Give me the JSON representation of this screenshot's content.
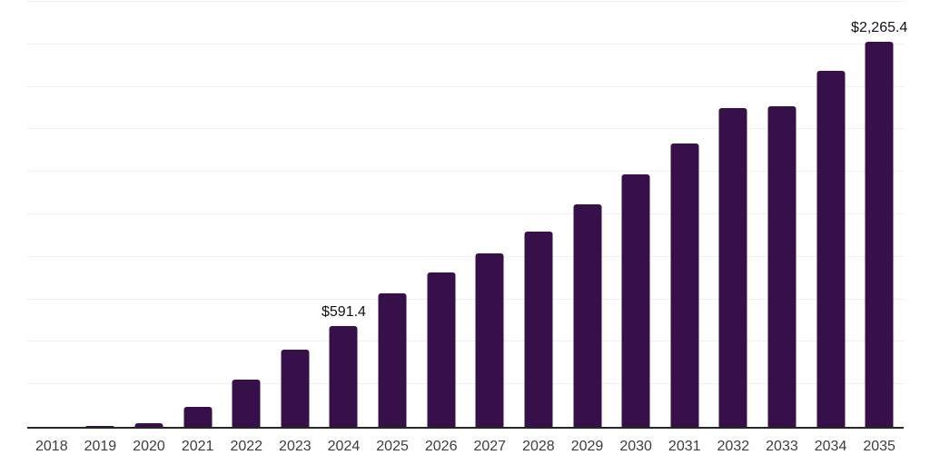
{
  "chart_data": {
    "type": "bar",
    "title": "",
    "xlabel": "",
    "ylabel": "",
    "categories": [
      "2018",
      "2019",
      "2020",
      "2021",
      "2022",
      "2023",
      "2024",
      "2025",
      "2026",
      "2027",
      "2028",
      "2029",
      "2030",
      "2031",
      "2032",
      "2033",
      "2034",
      "2035"
    ],
    "values": [
      1,
      8,
      21,
      118,
      280,
      455,
      591.4,
      784,
      908,
      1020,
      1147,
      1309,
      1485,
      1668,
      1877,
      1884,
      2094,
      2265.4
    ],
    "data_labels": [
      {
        "category": "2024",
        "text": "$591.4"
      },
      {
        "category": "2035",
        "text": "$2,265.4"
      }
    ],
    "ylim": [
      0,
      2500
    ],
    "gridline_step": 250,
    "grid": "horizontal",
    "legend": "none",
    "y_tick_labels": "none",
    "colors": {
      "bar": "#37104A",
      "gridline": "#f0f0f0",
      "axis": "#262626",
      "x_tick_label": "#3d3d3d",
      "value_label": "#111111",
      "background": "#ffffff"
    }
  }
}
